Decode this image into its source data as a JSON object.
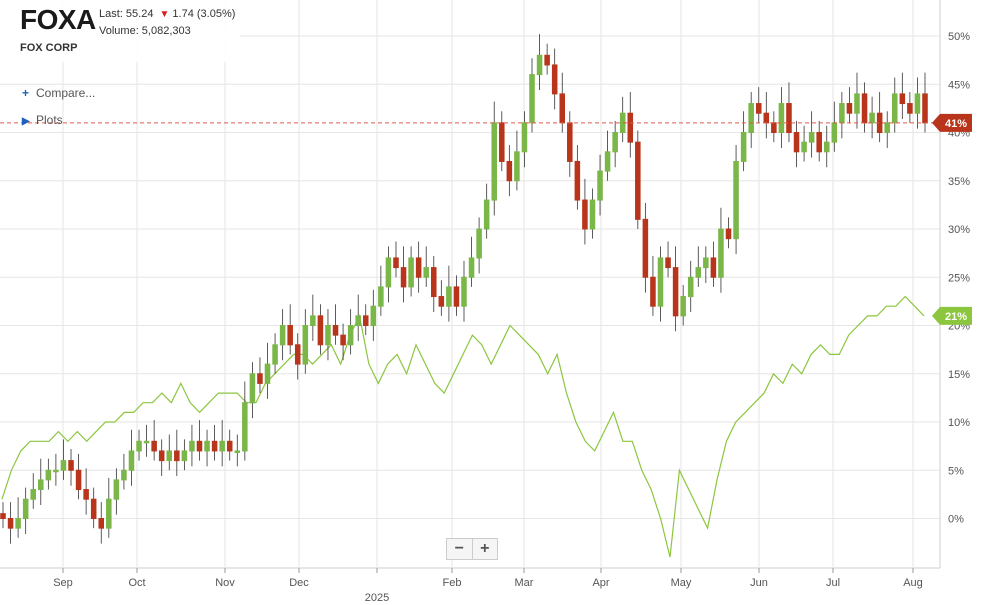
{
  "header": {
    "ticker": "FOXA",
    "company": "FOX CORP",
    "last": "Last: 55.24",
    "change": "1.74 (3.05%)",
    "volume": "Volume: 5,082,303"
  },
  "menu": {
    "compare_label": "Compare...",
    "plots_label": "Plots"
  },
  "zoom": {
    "minus": "−",
    "plus": "+"
  },
  "colors": {
    "up": "#7ab648",
    "down": "#b8341a",
    "benchmark": "#8cc63f",
    "price_line": "#e05a4a"
  },
  "chart_data": {
    "type": "candlestick+line",
    "yaxis": {
      "unit": "percent change",
      "ticks": [
        "0%",
        "5%",
        "10%",
        "15%",
        "20%",
        "25%",
        "30%",
        "35%",
        "40%",
        "45%",
        "50%"
      ],
      "ylim": [
        -5,
        52
      ],
      "position": "right"
    },
    "xaxis": {
      "tick_labels": [
        "Sep",
        "Oct",
        "Nov",
        "Dec",
        "2025",
        "Feb",
        "Mar",
        "Apr",
        "May",
        "Jun",
        "Jul",
        "Aug"
      ]
    },
    "grid": true,
    "price_series": {
      "name": "FOXA",
      "last_label": "41%",
      "current_pct": 41,
      "candles_close_pct": [
        0,
        -1,
        0,
        2,
        3,
        4,
        5,
        5,
        6,
        5,
        3,
        2,
        0,
        -1,
        2,
        4,
        5,
        7,
        8,
        8,
        7,
        6,
        7,
        6,
        7,
        8,
        7,
        8,
        7,
        8,
        7,
        7,
        12,
        15,
        14,
        16,
        18,
        20,
        18,
        16,
        20,
        21,
        18,
        20,
        19,
        18,
        20,
        21,
        20,
        22,
        24,
        27,
        26,
        24,
        27,
        25,
        26,
        23,
        22,
        24,
        22,
        25,
        27,
        30,
        33,
        41,
        37,
        35,
        38,
        41,
        46,
        48,
        47,
        44,
        41,
        37,
        33,
        30,
        33,
        36,
        38,
        40,
        42,
        39,
        31,
        25,
        22,
        27,
        26,
        21,
        23,
        25,
        26,
        27,
        25,
        30,
        29,
        37,
        40,
        43,
        42,
        41,
        40,
        43,
        40,
        38,
        39,
        40,
        38,
        39,
        41,
        43,
        42,
        44,
        41,
        42,
        40,
        41,
        44,
        43,
        42,
        44,
        41
      ]
    },
    "benchmark_series": {
      "last_label": "21%",
      "current_pct": 21,
      "values_pct": [
        2,
        5,
        7,
        8,
        8,
        8,
        9,
        8,
        9,
        8,
        9,
        10,
        10,
        11,
        11,
        12,
        12,
        13,
        12,
        14,
        12,
        11,
        12,
        13,
        13,
        13,
        12,
        12,
        14,
        15,
        16,
        17,
        17,
        16,
        17,
        18,
        16,
        19,
        21,
        16,
        14,
        16,
        17,
        15,
        18,
        16,
        14,
        13,
        15,
        17,
        19,
        18,
        16,
        18,
        20,
        19,
        18,
        17,
        15,
        17,
        13,
        10,
        8,
        7,
        9,
        11,
        8,
        8,
        5,
        3,
        0,
        -4,
        5,
        3,
        1,
        -1,
        4,
        8,
        10,
        11,
        12,
        13,
        15,
        14,
        16,
        15,
        17,
        18,
        17,
        17,
        19,
        20,
        21,
        21,
        22,
        22,
        23,
        22,
        21
      ]
    }
  }
}
